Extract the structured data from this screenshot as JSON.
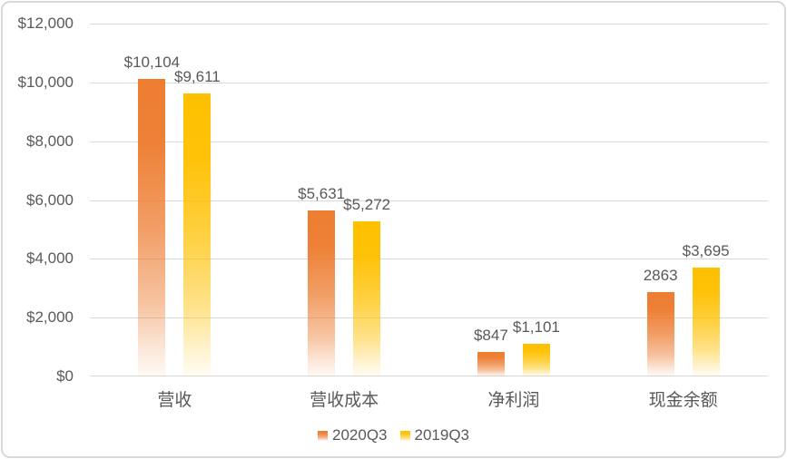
{
  "chart_data": {
    "type": "bar",
    "title": "",
    "categories": [
      "营收",
      "营收成本",
      "净利润",
      "现金余额"
    ],
    "series": [
      {
        "name": "2020Q3",
        "color": "#ED7D31",
        "values": [
          10104,
          5631,
          847,
          2863
        ],
        "labels": [
          "$10,104",
          "$5,631",
          "$847",
          "2863"
        ]
      },
      {
        "name": "2019Q3",
        "color": "#FFC000",
        "values": [
          9611,
          5272,
          1101,
          3695
        ],
        "labels": [
          "$9,611",
          "$5,272",
          "$1,101",
          "$3,695"
        ]
      }
    ],
    "y_axis": {
      "min": 0,
      "max": 12000,
      "step": 2000,
      "tick_labels": [
        "$0",
        "$2,000",
        "$4,000",
        "$6,000",
        "$8,000",
        "$10,000",
        "$12,000"
      ]
    },
    "grid": true,
    "legend_position": "bottom",
    "colors": {
      "text": "#595959",
      "gridline": "#D9D9D9",
      "frame_border": "#D9D9D9",
      "background": "#FFFFFF"
    },
    "bar_style": "gradient-fade-to-white-at-bottom"
  }
}
